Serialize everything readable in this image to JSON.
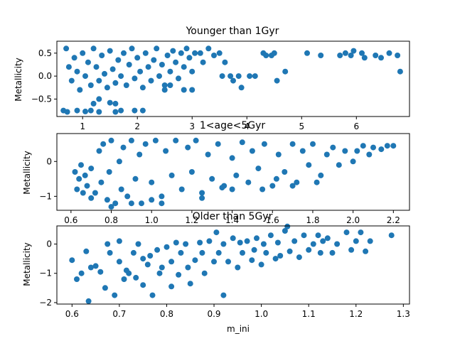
{
  "chart_data": [
    {
      "type": "scatter",
      "title": "Younger than 1Gyr",
      "xlabel": "",
      "ylabel": "Metallicity",
      "xlim": [
        0.53,
        6.97
      ],
      "ylim": [
        -0.88,
        0.76
      ],
      "xticks": [
        1,
        2,
        3,
        4,
        5,
        6
      ],
      "yticks": [
        -0.5,
        0.0,
        0.5
      ],
      "ytick_labels": [
        "−0.5",
        "0.0",
        "0.5"
      ],
      "marker_color": "#1f77b4",
      "series": [
        {
          "points": [
            [
              0.7,
              0.6
            ],
            [
              0.75,
              0.2
            ],
            [
              0.8,
              -0.1
            ],
            [
              0.85,
              0.4
            ],
            [
              0.9,
              0.1
            ],
            [
              0.95,
              -0.3
            ],
            [
              1.0,
              0.5
            ],
            [
              1.05,
              0.0
            ],
            [
              1.1,
              0.3
            ],
            [
              1.15,
              -0.2
            ],
            [
              1.2,
              0.6
            ],
            [
              1.25,
              0.2
            ],
            [
              1.3,
              -0.1
            ],
            [
              1.35,
              0.45
            ],
            [
              1.4,
              0.05
            ],
            [
              1.45,
              -0.25
            ],
            [
              1.5,
              0.55
            ],
            [
              1.55,
              0.15
            ],
            [
              1.6,
              -0.15
            ],
            [
              1.65,
              0.35
            ],
            [
              1.7,
              0.0
            ],
            [
              1.75,
              0.5
            ],
            [
              1.8,
              -0.2
            ],
            [
              1.85,
              0.25
            ],
            [
              1.9,
              0.6
            ],
            [
              1.95,
              -0.05
            ],
            [
              2.0,
              0.4
            ],
            [
              2.05,
              0.1
            ],
            [
              2.1,
              -0.25
            ],
            [
              2.15,
              0.5
            ],
            [
              2.2,
              0.2
            ],
            [
              2.25,
              -0.1
            ],
            [
              2.3,
              0.35
            ],
            [
              2.35,
              0.6
            ],
            [
              2.4,
              0.0
            ],
            [
              2.45,
              0.25
            ],
            [
              2.5,
              -0.2
            ],
            [
              2.55,
              0.45
            ],
            [
              2.6,
              0.1
            ],
            [
              2.65,
              0.55
            ],
            [
              2.7,
              0.3
            ],
            [
              2.75,
              -0.05
            ],
            [
              2.8,
              0.5
            ],
            [
              2.85,
              0.2
            ],
            [
              2.9,
              0.6
            ],
            [
              2.95,
              0.4
            ],
            [
              3.0,
              0.1
            ],
            [
              3.05,
              0.5
            ],
            [
              0.65,
              -0.75
            ],
            [
              0.72,
              -0.78
            ],
            [
              0.9,
              -0.75
            ],
            [
              1.05,
              -0.77
            ],
            [
              1.15,
              -0.75
            ],
            [
              1.3,
              -0.78
            ],
            [
              1.6,
              -0.78
            ],
            [
              1.7,
              -0.75
            ],
            [
              1.95,
              -0.75
            ],
            [
              2.1,
              -0.75
            ],
            [
              1.5,
              -0.58
            ],
            [
              1.6,
              -0.6
            ],
            [
              1.2,
              -0.6
            ],
            [
              1.3,
              -0.5
            ],
            [
              3.15,
              0.5
            ],
            [
              3.2,
              0.3
            ],
            [
              3.3,
              0.6
            ],
            [
              3.4,
              0.45
            ],
            [
              3.5,
              0.5
            ],
            [
              3.55,
              0.0
            ],
            [
              3.6,
              0.3
            ],
            [
              3.7,
              0.0
            ],
            [
              3.75,
              -0.1
            ],
            [
              3.85,
              0.0
            ],
            [
              3.9,
              -0.25
            ],
            [
              3.0,
              -0.3
            ],
            [
              2.85,
              -0.3
            ],
            [
              2.5,
              -0.3
            ],
            [
              2.6,
              -0.2
            ],
            [
              4.05,
              0.0
            ],
            [
              4.15,
              0.0
            ],
            [
              4.3,
              0.5
            ],
            [
              4.35,
              0.45
            ],
            [
              4.45,
              0.45
            ],
            [
              4.5,
              0.5
            ],
            [
              4.55,
              -0.1
            ],
            [
              4.7,
              0.1
            ],
            [
              5.1,
              0.5
            ],
            [
              5.35,
              0.45
            ],
            [
              5.7,
              0.45
            ],
            [
              5.8,
              0.5
            ],
            [
              5.9,
              0.45
            ],
            [
              5.95,
              0.55
            ],
            [
              6.1,
              0.5
            ],
            [
              6.15,
              0.4
            ],
            [
              6.35,
              0.45
            ],
            [
              6.45,
              0.4
            ],
            [
              6.6,
              0.5
            ],
            [
              6.75,
              0.45
            ],
            [
              6.8,
              0.1
            ]
          ]
        }
      ]
    },
    {
      "type": "scatter",
      "title": "1<age<5Gyr",
      "xlabel": "",
      "ylabel": "Metallicity",
      "xlim": [
        0.53,
        2.28
      ],
      "ylim": [
        -1.4,
        0.8
      ],
      "xticks": [
        0.6,
        0.8,
        1.0,
        1.2,
        1.4,
        1.6,
        1.8,
        2.0,
        2.2
      ],
      "xtick_labels": [
        "0.6",
        "0.8",
        "1.0",
        "1.2",
        "1.4",
        "1.6",
        "1.8",
        "2.0",
        "2.2"
      ],
      "yticks": [
        -1,
        0
      ],
      "ytick_labels": [
        "−1",
        "0"
      ],
      "marker_color": "#1f77b4",
      "series": [
        {
          "points": [
            [
              0.62,
              -0.3
            ],
            [
              0.63,
              -0.8
            ],
            [
              0.64,
              -0.5
            ],
            [
              0.65,
              -0.1
            ],
            [
              0.66,
              -0.9
            ],
            [
              0.67,
              -0.4
            ],
            [
              0.68,
              -0.7
            ],
            [
              0.7,
              -0.2
            ],
            [
              0.72,
              -0.9
            ],
            [
              0.74,
              0.3
            ],
            [
              0.75,
              -0.6
            ],
            [
              0.76,
              0.5
            ],
            [
              0.78,
              -1.1
            ],
            [
              0.79,
              -0.3
            ],
            [
              0.8,
              0.6
            ],
            [
              0.82,
              -1.2
            ],
            [
              0.84,
              0.0
            ],
            [
              0.85,
              -0.8
            ],
            [
              0.86,
              0.4
            ],
            [
              0.88,
              -1.0
            ],
            [
              0.9,
              0.6
            ],
            [
              0.92,
              -0.5
            ],
            [
              0.94,
              0.2
            ],
            [
              0.95,
              -1.2
            ],
            [
              0.97,
              0.5
            ],
            [
              1.0,
              -0.6
            ],
            [
              1.02,
              0.6
            ],
            [
              1.05,
              -1.0
            ],
            [
              1.07,
              0.3
            ],
            [
              1.1,
              -0.4
            ],
            [
              1.12,
              0.6
            ],
            [
              1.15,
              -0.8
            ],
            [
              1.18,
              0.4
            ],
            [
              1.2,
              -0.3
            ],
            [
              1.22,
              0.6
            ],
            [
              1.25,
              -0.9
            ],
            [
              1.28,
              0.2
            ],
            [
              1.3,
              -0.5
            ],
            [
              1.33,
              0.5
            ],
            [
              1.36,
              -0.7
            ],
            [
              1.4,
              0.1
            ],
            [
              1.42,
              -0.4
            ],
            [
              1.45,
              0.55
            ],
            [
              1.48,
              -0.6
            ],
            [
              1.5,
              0.3
            ],
            [
              1.53,
              -0.2
            ],
            [
              1.56,
              0.5
            ],
            [
              1.6,
              -0.7
            ],
            [
              1.63,
              0.2
            ],
            [
              1.66,
              -0.3
            ],
            [
              1.7,
              0.5
            ],
            [
              1.72,
              -0.6
            ],
            [
              1.75,
              0.3
            ],
            [
              1.78,
              -0.1
            ],
            [
              1.8,
              0.5
            ],
            [
              1.84,
              -0.4
            ],
            [
              1.87,
              0.2
            ],
            [
              1.9,
              0.4
            ],
            [
              1.93,
              -0.1
            ],
            [
              1.96,
              0.3
            ],
            [
              2.0,
              0.0
            ],
            [
              2.02,
              0.3
            ],
            [
              2.05,
              0.45
            ],
            [
              2.08,
              0.2
            ],
            [
              2.1,
              0.4
            ],
            [
              2.14,
              0.35
            ],
            [
              2.17,
              0.45
            ],
            [
              2.2,
              0.45
            ],
            [
              0.8,
              -1.3
            ],
            [
              0.9,
              -1.2
            ],
            [
              1.05,
              -1.2
            ],
            [
              1.55,
              -0.8
            ],
            [
              1.4,
              -0.8
            ],
            [
              1.7,
              -0.7
            ],
            [
              1.62,
              -0.5
            ],
            [
              1.82,
              -0.6
            ],
            [
              1.35,
              -0.75
            ],
            [
              1.25,
              -1.05
            ],
            [
              1.0,
              -1.1
            ],
            [
              0.7,
              -1.05
            ]
          ]
        }
      ]
    },
    {
      "type": "scatter",
      "title": "Older than 5Gyr",
      "xlabel": "m_ini",
      "ylabel": "Metallicity",
      "xlim": [
        0.568,
        1.313
      ],
      "ylim": [
        -2.05,
        0.62
      ],
      "xticks": [
        0.6,
        0.7,
        0.8,
        0.9,
        1.0,
        1.1,
        1.2,
        1.3
      ],
      "xtick_labels": [
        "0.6",
        "0.7",
        "0.8",
        "0.9",
        "1.0",
        "1.1",
        "1.2",
        "1.3"
      ],
      "yticks": [
        -2,
        -1,
        0
      ],
      "ytick_labels": [
        "−2",
        "−1",
        "0"
      ],
      "marker_color": "#1f77b4",
      "series": [
        {
          "points": [
            [
              0.6,
              -0.55
            ],
            [
              0.61,
              -1.2
            ],
            [
              0.62,
              -1.0
            ],
            [
              0.63,
              -0.25
            ],
            [
              0.64,
              -0.8
            ],
            [
              0.635,
              -1.95
            ],
            [
              0.65,
              -0.75
            ],
            [
              0.66,
              -0.95
            ],
            [
              0.67,
              -1.5
            ],
            [
              0.675,
              0.0
            ],
            [
              0.68,
              -0.3
            ],
            [
              0.69,
              -1.75
            ],
            [
              0.7,
              0.1
            ],
            [
              0.7,
              -0.6
            ],
            [
              0.71,
              -1.2
            ],
            [
              0.715,
              -0.9
            ],
            [
              0.72,
              -1.0
            ],
            [
              0.73,
              -0.3
            ],
            [
              0.735,
              -1.15
            ],
            [
              0.74,
              0.0
            ],
            [
              0.75,
              -0.5
            ],
            [
              0.75,
              -1.4
            ],
            [
              0.76,
              -0.7
            ],
            [
              0.765,
              -0.4
            ],
            [
              0.77,
              -1.75
            ],
            [
              0.78,
              -0.2
            ],
            [
              0.785,
              -1.0
            ],
            [
              0.79,
              -0.8
            ],
            [
              0.8,
              -0.1
            ],
            [
              0.81,
              -1.45
            ],
            [
              0.81,
              -0.6
            ],
            [
              0.82,
              0.05
            ],
            [
              0.825,
              -1.05
            ],
            [
              0.83,
              -0.3
            ],
            [
              0.84,
              0.0
            ],
            [
              0.845,
              -0.8
            ],
            [
              0.85,
              -1.35
            ],
            [
              0.86,
              -0.55
            ],
            [
              0.87,
              0.05
            ],
            [
              0.875,
              -0.3
            ],
            [
              0.88,
              -1.0
            ],
            [
              0.89,
              0.1
            ],
            [
              0.9,
              -0.6
            ],
            [
              0.905,
              0.4
            ],
            [
              0.91,
              -0.3
            ],
            [
              0.92,
              -1.75
            ],
            [
              0.92,
              0.0
            ],
            [
              0.93,
              -0.6
            ],
            [
              0.94,
              0.2
            ],
            [
              0.95,
              -0.8
            ],
            [
              0.955,
              0.05
            ],
            [
              0.96,
              -0.3
            ],
            [
              0.97,
              0.1
            ],
            [
              0.98,
              -0.55
            ],
            [
              0.985,
              -0.2
            ],
            [
              0.99,
              0.2
            ],
            [
              1.0,
              -0.7
            ],
            [
              1.005,
              0.0
            ],
            [
              1.01,
              -0.3
            ],
            [
              1.02,
              0.3
            ],
            [
              1.03,
              -0.5
            ],
            [
              1.035,
              0.05
            ],
            [
              1.04,
              -0.4
            ],
            [
              1.05,
              0.45
            ],
            [
              1.055,
              0.6
            ],
            [
              1.06,
              -0.25
            ],
            [
              1.07,
              0.1
            ],
            [
              1.08,
              -0.45
            ],
            [
              1.09,
              0.3
            ],
            [
              1.1,
              -0.2
            ],
            [
              1.11,
              0.0
            ],
            [
              1.12,
              0.3
            ],
            [
              1.125,
              -0.3
            ],
            [
              1.13,
              0.1
            ],
            [
              1.14,
              0.2
            ],
            [
              1.15,
              -0.3
            ],
            [
              1.16,
              0.0
            ],
            [
              1.18,
              0.4
            ],
            [
              1.19,
              -0.2
            ],
            [
              1.2,
              0.1
            ],
            [
              1.21,
              0.4
            ],
            [
              1.22,
              -0.25
            ],
            [
              1.23,
              0.1
            ],
            [
              1.275,
              0.3
            ]
          ]
        }
      ]
    }
  ]
}
